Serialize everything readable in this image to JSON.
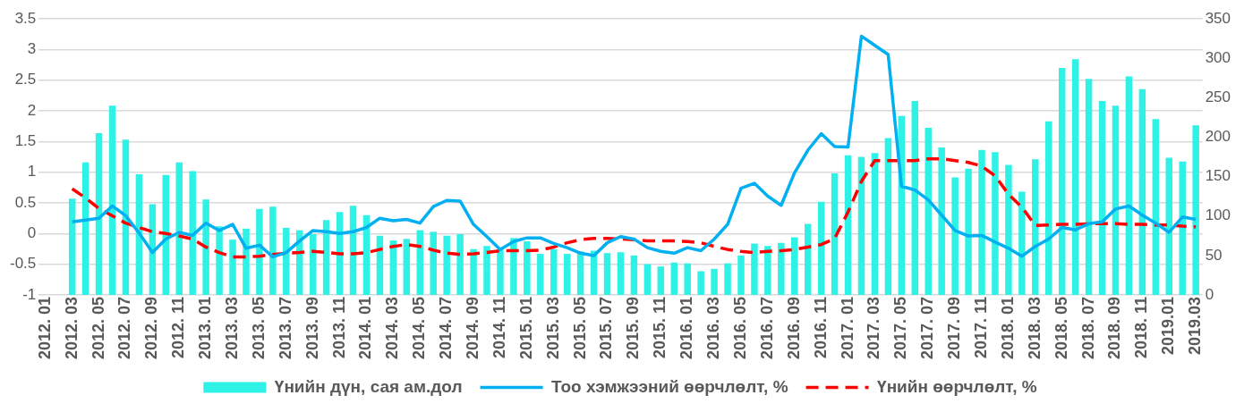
{
  "chart_data": {
    "type": "bar",
    "categories": [
      "2012. 01",
      null,
      "2012. 03",
      null,
      "2012. 05",
      null,
      "2012. 07",
      null,
      "2012. 09",
      null,
      "2012. 11",
      null,
      "2013. 01",
      null,
      "2013. 03",
      null,
      "2013. 05",
      null,
      "2013. 07",
      null,
      "2013. 09",
      null,
      "2013. 11",
      null,
      "2014. 01",
      null,
      "2014. 03",
      null,
      "2014. 05",
      null,
      "2014. 07",
      null,
      "2014. 09",
      null,
      "2014. 11",
      null,
      "2015. 01",
      null,
      "2015. 03",
      null,
      "2015. 05",
      null,
      "2015. 07",
      null,
      "2015. 09",
      null,
      "2015. 11",
      null,
      "2016. 01",
      null,
      "2016. 03",
      null,
      "2016. 05",
      null,
      "2016. 07",
      null,
      "2016. 09",
      null,
      "2016. 11",
      null,
      "2017. 01",
      null,
      "2017. 03",
      null,
      "2017. 05",
      null,
      "2017. 07",
      null,
      "2017. 09",
      null,
      "2017. 11",
      null,
      "2018. 01",
      null,
      "2018. 03",
      null,
      "2018. 05",
      null,
      "2018. 07",
      null,
      "2018. 09",
      null,
      "2018. 11",
      null,
      "2019.01",
      null,
      "2019.03"
    ],
    "series": [
      {
        "name": "Үнийн дүн, сая ам.дол",
        "axis": "y2",
        "color": "#2ef2e6",
        "values": [
          null,
          null,
          122,
          168,
          205,
          240,
          197,
          153,
          115,
          152,
          168,
          157,
          121,
          87,
          70,
          84,
          109,
          112,
          85,
          82,
          77,
          95,
          105,
          113,
          101,
          75,
          69,
          71,
          82,
          80,
          75,
          77,
          58,
          62,
          57,
          72,
          68,
          52,
          58,
          52,
          55,
          56,
          53,
          54,
          50,
          39,
          36,
          41,
          40,
          30,
          33,
          40,
          50,
          65,
          62,
          66,
          73,
          90,
          118,
          154,
          177,
          175,
          180,
          199,
          227,
          246,
          212,
          187,
          149,
          160,
          184,
          181,
          165,
          131,
          172,
          220,
          288,
          299,
          274,
          246,
          240,
          277,
          261,
          223,
          174,
          169,
          215
        ]
      },
      {
        "name": "Тоо хэмжээний өөрчлөлт, %",
        "type": "line",
        "color": "#00b0f0",
        "values": [
          null,
          null,
          0.19,
          0.22,
          0.25,
          0.45,
          0.29,
          0.01,
          -0.31,
          -0.09,
          0.02,
          -0.03,
          0.17,
          0.05,
          0.15,
          -0.24,
          -0.19,
          -0.38,
          -0.31,
          -0.12,
          0.05,
          0.03,
          0.0,
          0.03,
          0.1,
          0.25,
          0.21,
          0.23,
          0.17,
          0.44,
          0.54,
          0.53,
          0.15,
          -0.05,
          -0.26,
          -0.13,
          -0.07,
          -0.07,
          -0.16,
          -0.23,
          -0.32,
          -0.36,
          -0.15,
          -0.05,
          -0.09,
          -0.23,
          -0.29,
          -0.32,
          -0.23,
          -0.28,
          -0.09,
          0.15,
          0.74,
          0.82,
          0.61,
          0.46,
          0.99,
          1.36,
          1.63,
          1.42,
          1.41,
          3.22,
          3.07,
          2.92,
          0.77,
          0.71,
          0.55,
          0.3,
          0.05,
          -0.04,
          -0.03,
          -0.14,
          -0.24,
          -0.37,
          -0.21,
          -0.09,
          0.1,
          0.06,
          0.16,
          0.19,
          0.4,
          0.45,
          0.3,
          0.17,
          0.02,
          0.27,
          0.23
        ]
      },
      {
        "name": "Үнийн өөрчлөлт, %",
        "type": "line",
        "line_style": "dashed",
        "color": "#ff0000",
        "values": [
          null,
          null,
          0.73,
          0.58,
          0.41,
          0.29,
          0.17,
          0.1,
          0.03,
          0.0,
          -0.04,
          -0.09,
          -0.22,
          -0.31,
          -0.38,
          -0.38,
          -0.37,
          -0.34,
          -0.32,
          -0.31,
          -0.29,
          -0.31,
          -0.33,
          -0.33,
          -0.31,
          -0.26,
          -0.21,
          -0.18,
          -0.21,
          -0.27,
          -0.32,
          -0.34,
          -0.33,
          -0.31,
          -0.28,
          -0.28,
          -0.28,
          -0.27,
          -0.22,
          -0.15,
          -0.1,
          -0.08,
          -0.08,
          -0.09,
          -0.1,
          -0.12,
          -0.12,
          -0.12,
          -0.13,
          -0.15,
          -0.21,
          -0.26,
          -0.29,
          -0.31,
          -0.29,
          -0.28,
          -0.26,
          -0.22,
          -0.18,
          -0.08,
          0.35,
          0.85,
          1.19,
          1.19,
          1.19,
          1.19,
          1.22,
          1.22,
          1.19,
          1.16,
          1.1,
          0.94,
          0.64,
          0.43,
          0.13,
          0.14,
          0.15,
          0.15,
          0.16,
          0.16,
          0.16,
          0.15,
          0.15,
          0.14,
          0.14,
          0.12,
          0.11
        ]
      }
    ],
    "ylim": [
      -1,
      3.5
    ],
    "yticks": [
      -1,
      -0.5,
      0,
      0.5,
      1,
      1.5,
      2,
      2.5,
      3,
      3.5
    ],
    "y2lim": [
      0,
      350
    ],
    "y2ticks": [
      0,
      50,
      100,
      150,
      200,
      250,
      300,
      350
    ],
    "grid": "y",
    "legend": "bottom",
    "marker": "none"
  }
}
